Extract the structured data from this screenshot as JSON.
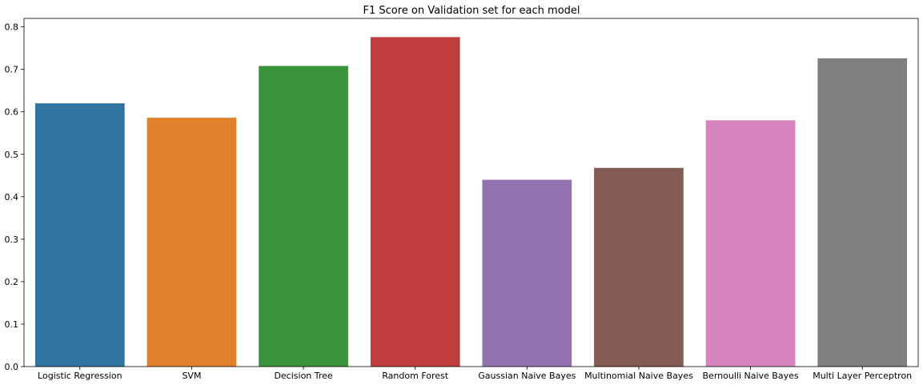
{
  "chart_data": {
    "type": "bar",
    "title": "F1 Score on Validation set for each model",
    "xlabel": "",
    "ylabel": "",
    "categories": [
      "Logistic Regression",
      "SVM",
      "Decision Tree",
      "Random Forest",
      "Gaussian Naive Bayes",
      "Multinomial Naive Bayes",
      "Bernoulli Naive Bayes",
      "Multi Layer Perceptron"
    ],
    "values": [
      0.62,
      0.586,
      0.708,
      0.776,
      0.44,
      0.468,
      0.58,
      0.726
    ],
    "colors": [
      "#3274a1",
      "#e1812c",
      "#3a923a",
      "#c03d3e",
      "#9372b2",
      "#845b53",
      "#d684bd",
      "#7f7f7f"
    ],
    "ylim": [
      0,
      0.82
    ],
    "yticks": [
      0.0,
      0.1,
      0.2,
      0.3,
      0.4,
      0.5,
      0.6,
      0.7,
      0.8
    ],
    "ytick_labels": [
      "0.0",
      "0.1",
      "0.2",
      "0.3",
      "0.4",
      "0.5",
      "0.6",
      "0.7",
      "0.8"
    ],
    "grid": false,
    "legend": "none"
  }
}
